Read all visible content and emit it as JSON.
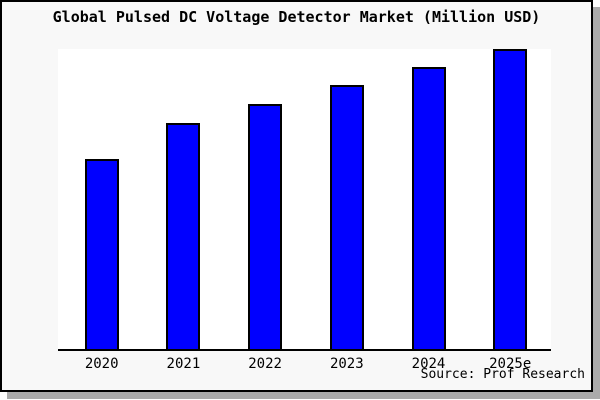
{
  "chart_data": {
    "type": "bar",
    "title": "Global Pulsed DC Voltage Detector Market (Million USD)",
    "categories": [
      "2020",
      "2021",
      "2022",
      "2023",
      "2024",
      "2025e"
    ],
    "values": [
      63.3,
      75.3,
      81.7,
      88.0,
      94.0,
      100.0
    ],
    "values_note": "y-axis is unlabeled; values estimated from bar pixel heights as percent of tallest bar (2025e = 100)",
    "xlabel": "",
    "ylabel": "",
    "ylim": [
      0,
      100
    ],
    "grid": false,
    "legend": false,
    "colors": {
      "bar_fill": "#0000ff",
      "bar_border": "#000000",
      "plot_background": "#ffffff",
      "card_background": "#f8f8f8",
      "card_border": "#000000",
      "shadow": "#ababab",
      "text": "#000000"
    }
  },
  "source": {
    "text": "Source: Prof Research"
  }
}
